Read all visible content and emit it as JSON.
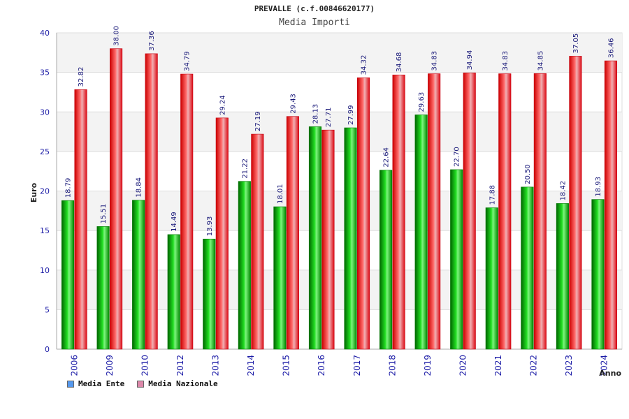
{
  "chart_data": {
    "type": "bar",
    "title": "PREVALLE (c.f.00846620177)",
    "subtitle": "Media Importi",
    "ylabel": "Euro",
    "xlabel": "Anno",
    "ylim": [
      0,
      40
    ],
    "yticks": [
      0,
      5,
      10,
      15,
      20,
      25,
      30,
      35,
      40
    ],
    "grid": true,
    "legend_position": "bottom-left",
    "categories": [
      "2006",
      "2009",
      "2010",
      "2012",
      "2013",
      "2014",
      "2015",
      "2016",
      "2017",
      "2018",
      "2019",
      "2020",
      "2021",
      "2022",
      "2023",
      "2024"
    ],
    "series": [
      {
        "name": "Media Ente",
        "color": "#00b000",
        "legend_color": "#5599ee",
        "values": [
          18.79,
          15.51,
          18.84,
          14.49,
          13.93,
          21.22,
          18.01,
          28.13,
          27.99,
          22.64,
          29.63,
          22.7,
          17.88,
          20.5,
          18.42,
          18.93
        ],
        "labels": [
          "18.79",
          "15.51",
          "18.84",
          "14.49",
          "13.93",
          "21.22",
          "18.01",
          "28.13",
          "27.99",
          "22.64",
          "29.63",
          "22.70",
          "17.88",
          "20.50",
          "18.42",
          "18.93"
        ]
      },
      {
        "name": "Media Nazionale",
        "color": "#e0101a",
        "legend_color": "#dd88aa",
        "values": [
          32.82,
          38.0,
          37.36,
          34.79,
          29.24,
          27.19,
          29.43,
          27.71,
          34.32,
          34.68,
          34.83,
          34.94,
          34.83,
          34.85,
          37.05,
          36.46
        ],
        "labels": [
          "32.82",
          "38.00",
          "37.36",
          "34.79",
          "29.24",
          "27.19",
          "29.43",
          "27.71",
          "34.32",
          "34.68",
          "34.83",
          "34.94",
          "34.83",
          "34.85",
          "37.05",
          "36.46"
        ]
      }
    ]
  }
}
